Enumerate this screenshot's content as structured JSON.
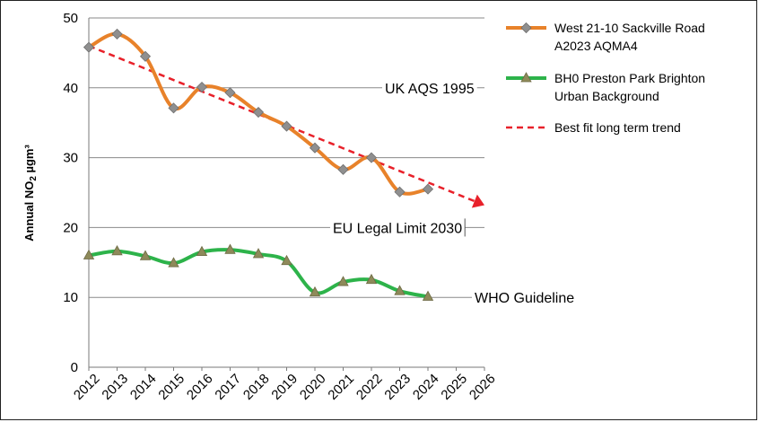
{
  "chart_data": {
    "type": "line",
    "ylabel_main": "Annual NO",
    "ylabel_sub": "2",
    "ylabel_unit": " µgm³",
    "xlim": [
      2012,
      2026
    ],
    "ylim": [
      0,
      50
    ],
    "yticks": [
      0,
      10,
      20,
      30,
      40,
      50
    ],
    "xticks": [
      "2012",
      "2013",
      "2014",
      "2015",
      "2016",
      "2017",
      "2018",
      "2019",
      "2020",
      "2021",
      "2022",
      "2023",
      "2024",
      "2025",
      "2026"
    ],
    "grid": "horizontal",
    "legend_position": "right",
    "reference_lines": [
      {
        "label": "UK AQS 1995",
        "value": 40
      },
      {
        "label": "EU Legal Limit 2030",
        "value": 20
      },
      {
        "label": "WHO Guideline",
        "value": 10
      }
    ],
    "series": [
      {
        "name": "West 21-10 Sackville Road A2023 AQMA4",
        "legend_lines": [
          "West 21-10 Sackville Road",
          "A2023 AQMA4"
        ],
        "color": "#E8822A",
        "marker": "diamond",
        "x": [
          2012,
          2013,
          2014,
          2015,
          2016,
          2017,
          2018,
          2019,
          2020,
          2021,
          2022,
          2023,
          2024
        ],
        "values": [
          45.8,
          47.7,
          44.5,
          37.1,
          40.1,
          39.3,
          36.5,
          34.5,
          31.4,
          28.3,
          30.0,
          25.1,
          25.5
        ]
      },
      {
        "name": "BH0 Preston Park Brighton Urban Background",
        "legend_lines": [
          "BH0 Preston Park Brighton",
          "Urban Background"
        ],
        "color": "#2DB34A",
        "marker": "triangle",
        "x": [
          2012,
          2013,
          2014,
          2015,
          2016,
          2017,
          2018,
          2019,
          2020,
          2021,
          2022,
          2023,
          2024
        ],
        "values": [
          16.0,
          16.6,
          15.9,
          14.9,
          16.5,
          16.8,
          16.2,
          15.2,
          10.7,
          12.2,
          12.5,
          10.9,
          10.1
        ]
      }
    ],
    "trend": {
      "name": "Best fit long term trend",
      "color": "#E8212A",
      "x": [
        2012,
        2026
      ],
      "values": [
        46.0,
        23.2
      ]
    }
  }
}
